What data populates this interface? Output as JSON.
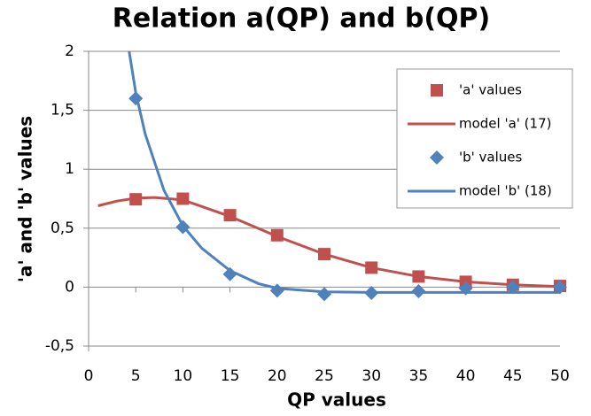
{
  "chart_data": {
    "type": "scatter",
    "title": "Relation a(QP) and b(QP)",
    "x_label": "QP values",
    "y_label": "'a'  and  'b'  values",
    "xlim": [
      0,
      50
    ],
    "xticks": [
      0,
      5,
      10,
      15,
      20,
      25,
      30,
      35,
      40,
      45,
      50
    ],
    "ylim": [
      -0.5,
      2
    ],
    "yticks": [
      {
        "value": -0.5,
        "label": "-0,5"
      },
      0,
      {
        "value": 0.5,
        "label": "0,5"
      },
      1,
      {
        "value": 1.5,
        "label": "1,5"
      },
      2
    ],
    "grid": true,
    "legend": "upper right",
    "series": [
      {
        "name": "'a' values",
        "color": "#c0504d",
        "mode": "markers",
        "marker": "square",
        "x": [
          5,
          10,
          15,
          20,
          25,
          30,
          35,
          40,
          45,
          50
        ],
        "values": [
          0.745,
          0.75,
          0.61,
          0.44,
          0.28,
          0.165,
          0.09,
          0.045,
          0.02,
          0.01
        ]
      },
      {
        "name": "model 'a'  (17)",
        "color": "#c0504d",
        "mode": "lines",
        "x": [
          1,
          3,
          5,
          7,
          10,
          15,
          20,
          25,
          30,
          35,
          40,
          45,
          50
        ],
        "values": [
          0.69,
          0.73,
          0.755,
          0.76,
          0.74,
          0.6,
          0.43,
          0.28,
          0.165,
          0.09,
          0.045,
          0.02,
          0.005
        ]
      },
      {
        "name": "'b' values",
        "color": "#4f81bd",
        "mode": "markers",
        "marker": "diamond",
        "x": [
          5,
          10,
          15,
          20,
          25,
          30,
          35,
          40,
          45,
          50
        ],
        "values": [
          1.6,
          0.51,
          0.11,
          -0.03,
          -0.06,
          -0.05,
          -0.035,
          -0.01,
          0,
          0
        ]
      },
      {
        "name": "model 'b'  (18)",
        "color": "#4f81bd",
        "mode": "lines",
        "x": [
          4.3,
          5,
          6,
          8,
          10,
          12,
          15,
          18,
          20,
          25,
          30,
          40,
          50
        ],
        "values": [
          2,
          1.65,
          1.3,
          0.82,
          0.52,
          0.33,
          0.14,
          0.03,
          -0.01,
          -0.04,
          -0.045,
          -0.045,
          -0.045
        ]
      }
    ]
  }
}
